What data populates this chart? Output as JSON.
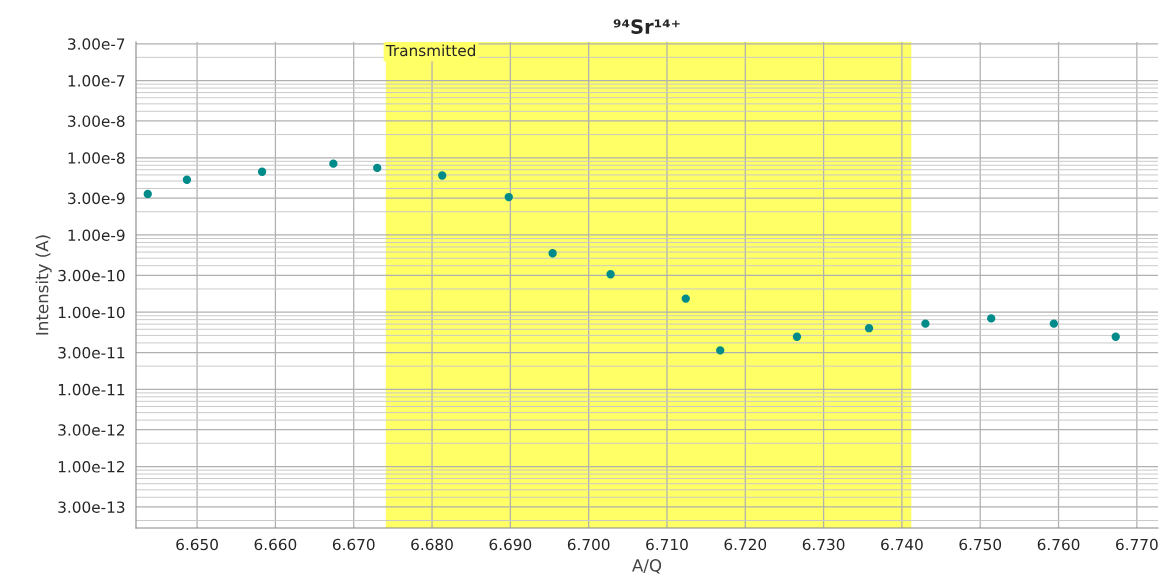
{
  "chart_data": {
    "type": "scatter",
    "title": "⁹⁴Sr¹⁴⁺",
    "xlabel": "A/Q",
    "ylabel": "Intensity (A)",
    "x": [
      6.6437,
      6.6487,
      6.6583,
      6.6674,
      6.673,
      6.6813,
      6.6898,
      6.6954,
      6.7028,
      6.7124,
      6.7168,
      6.7266,
      6.7358,
      6.743,
      6.7514,
      6.7594,
      6.7673
    ],
    "series": [
      {
        "color": "#008b8b",
        "values": [
          3.4e-09,
          5.2e-09,
          6.6e-09,
          8.4e-09,
          7.4e-09,
          5.9e-09,
          3.1e-09,
          5.8e-10,
          3.1e-10,
          1.5e-10,
          3.2e-11,
          4.8e-11,
          6.2e-11,
          7.1e-11,
          8.3e-11,
          7.1e-11,
          4.8e-11
        ]
      }
    ],
    "log": "y",
    "marker": "circle",
    "xlim": [
      6.6422,
      6.7727
    ],
    "ylim": [
      1.6e-13,
      3.162e-07
    ],
    "xticks": [
      {
        "value": 6.65,
        "label": "6.650"
      },
      {
        "value": 6.66,
        "label": "6.660"
      },
      {
        "value": 6.67,
        "label": "6.670"
      },
      {
        "value": 6.68,
        "label": "6.680"
      },
      {
        "value": 6.69,
        "label": "6.690"
      },
      {
        "value": 6.7,
        "label": "6.700"
      },
      {
        "value": 6.71,
        "label": "6.710"
      },
      {
        "value": 6.72,
        "label": "6.720"
      },
      {
        "value": 6.73,
        "label": "6.730"
      },
      {
        "value": 6.74,
        "label": "6.740"
      },
      {
        "value": 6.75,
        "label": "6.750"
      },
      {
        "value": 6.76,
        "label": "6.760"
      },
      {
        "value": 6.77,
        "label": "6.770"
      }
    ],
    "yticks": [
      {
        "value": 3e-07,
        "label": "3.00e-7"
      },
      {
        "value": 1e-07,
        "label": "1.00e-7"
      },
      {
        "value": 3e-08,
        "label": "3.00e-8"
      },
      {
        "value": 1e-08,
        "label": "1.00e-8"
      },
      {
        "value": 3e-09,
        "label": "3.00e-9"
      },
      {
        "value": 1e-09,
        "label": "1.00e-9"
      },
      {
        "value": 3e-10,
        "label": "3.00e-10"
      },
      {
        "value": 1e-10,
        "label": "1.00e-10"
      },
      {
        "value": 3e-11,
        "label": "3.00e-11"
      },
      {
        "value": 1e-11,
        "label": "1.00e-11"
      },
      {
        "value": 3e-12,
        "label": "3.00e-12"
      },
      {
        "value": 1e-12,
        "label": "1.00e-12"
      },
      {
        "value": 3e-13,
        "label": "3.00e-13"
      }
    ],
    "bands": [
      {
        "axis": "x",
        "from": 6.6741,
        "to": 6.7412,
        "label": "Transmitted",
        "color": "#ffff66"
      }
    ],
    "grid": true
  }
}
